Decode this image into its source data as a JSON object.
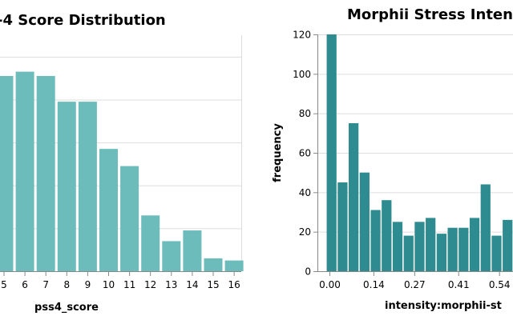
{
  "colors": {
    "left_bar": "#6cbcbc",
    "right_bar": "#2e8b8f",
    "grid": "#dddddd",
    "axis": "#888888"
  },
  "chart_data": [
    {
      "type": "bar",
      "title": "-4 Score Distribution",
      "xlabel": "pss4_score",
      "ylabel": "",
      "categories": [
        "5",
        "6",
        "7",
        "8",
        "9",
        "10",
        "11",
        "12",
        "13",
        "14",
        "15",
        "16"
      ],
      "values": [
        91,
        93,
        91,
        79,
        79,
        57,
        49,
        26,
        14,
        19,
        6,
        5
      ],
      "ylim": [
        0,
        110
      ],
      "gridlines": [
        0,
        20,
        40,
        60,
        80,
        100
      ],
      "grid": true
    },
    {
      "type": "bar",
      "title": "Morphii Stress Intens",
      "xlabel": "intensity:morphii-st",
      "ylabel": "frequency",
      "bin_width": 0.035,
      "x_start": -0.01,
      "values": [
        120,
        45,
        75,
        50,
        31,
        36,
        25,
        18,
        25,
        27,
        19,
        22,
        22,
        27,
        44,
        18,
        26
      ],
      "x_ticks": [
        "0.00",
        "0.14",
        "0.27",
        "0.41",
        "0.54"
      ],
      "x_tick_values": [
        0.0,
        0.14,
        0.27,
        0.41,
        0.54
      ],
      "y_ticks": [
        "0",
        "20",
        "40",
        "60",
        "80",
        "100",
        "120"
      ],
      "ylim": [
        0,
        120
      ],
      "grid": true
    }
  ]
}
